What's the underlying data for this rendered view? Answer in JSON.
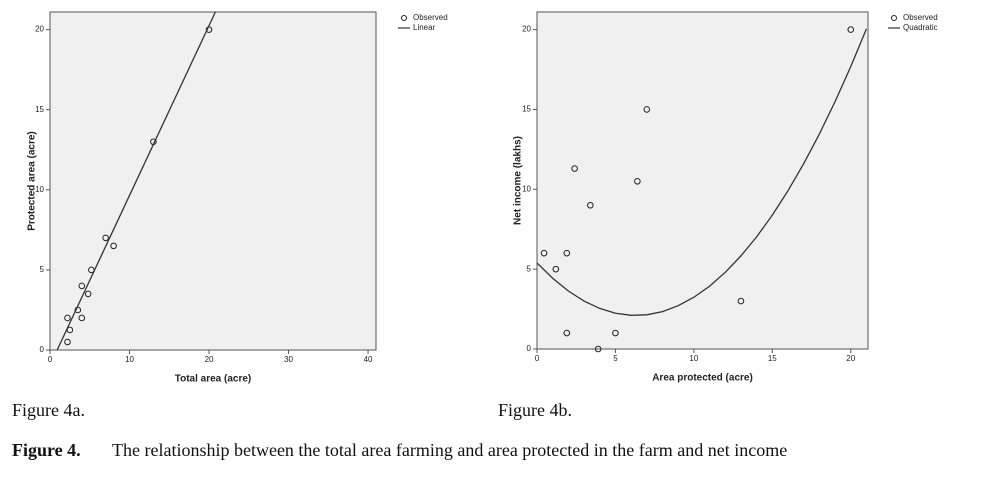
{
  "chart_data": [
    {
      "type": "scatter",
      "x_label": "Total area (acre)",
      "y_label": "Protected area (acre)",
      "xlim": [
        0,
        41
      ],
      "ylim": [
        0,
        21.1
      ],
      "xticks": [
        0,
        10,
        20,
        30,
        40
      ],
      "yticks": [
        0,
        5,
        10,
        15,
        20
      ],
      "series": [
        {
          "name": "Observed",
          "type": "scatter",
          "color": "#222222",
          "x": [
            2.2,
            2.5,
            2.2,
            3.5,
            4,
            4,
            4.8,
            5.2,
            7,
            8,
            13,
            20
          ],
          "values": [
            0.5,
            1.25,
            2,
            2.5,
            4,
            2,
            3.5,
            5,
            7,
            6.5,
            13,
            20
          ]
        },
        {
          "name": "Linear",
          "type": "line",
          "color": "#333333",
          "x": [
            0.9,
            20.8
          ],
          "values": [
            0,
            21.1
          ]
        }
      ]
    },
    {
      "type": "scatter",
      "x_label": "Area protected (acre)",
      "y_label": "Net income (lakhs)",
      "xlim": [
        0,
        21.1
      ],
      "ylim": [
        0,
        21.1
      ],
      "xticks": [
        0,
        5,
        10,
        15,
        20
      ],
      "yticks": [
        0,
        5,
        10,
        15,
        20
      ],
      "series": [
        {
          "name": "Observed",
          "type": "scatter",
          "color": "#222222",
          "x": [
            0.45,
            1.2,
            1.9,
            1.9,
            2.4,
            3.4,
            3.9,
            5,
            6.4,
            7,
            13,
            20
          ],
          "values": [
            6,
            5,
            6,
            1,
            11.3,
            9,
            0,
            1,
            10.5,
            15,
            3,
            20
          ]
        },
        {
          "name": "Quadratic",
          "type": "line",
          "color": "#333333",
          "x": [
            0,
            1,
            2,
            3,
            4,
            5,
            6,
            7,
            8,
            9,
            10,
            11,
            12,
            13,
            14,
            15,
            16,
            17,
            18,
            19,
            20,
            21
          ],
          "values": [
            5.39,
            4.43,
            3.63,
            3.0,
            2.54,
            2.24,
            2.11,
            2.14,
            2.34,
            2.71,
            3.24,
            3.93,
            4.8,
            5.83,
            7.02,
            8.38,
            9.91,
            11.6,
            13.46,
            15.49,
            17.68,
            20.04
          ]
        }
      ]
    }
  ],
  "captions": {
    "figure_a": "Figure 4a.",
    "figure_b": "Figure 4b.",
    "main_label": "Figure 4.",
    "main_text": "The relationship between the total area farming and area protected in the farm and net income"
  }
}
